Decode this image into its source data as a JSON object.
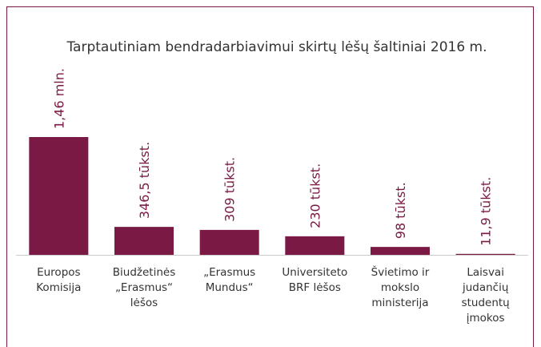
{
  "chart_data": {
    "type": "bar",
    "title": "Tarptautiniam bendradarbiavimui skirtų lėšų šaltiniai 2016 m.",
    "categories": [
      "Europos Komisija",
      "Biudžetinės „Erasmus“ lėšos",
      "„Erasmus Mundus“",
      "Universiteto BRF lėšos",
      "Švietimo ir mokslo ministerija",
      "Laisvai judančių studentų įmokos"
    ],
    "values": [
      1460000,
      346500,
      309000,
      230000,
      98000,
      11900
    ],
    "value_labels": [
      "1,46 mln.",
      "346,5 tūkst.",
      "309 tūkst.",
      "230 tūkst.",
      "98 tūkst.",
      "11,9 tūkst."
    ],
    "color": "#7a1a44"
  }
}
